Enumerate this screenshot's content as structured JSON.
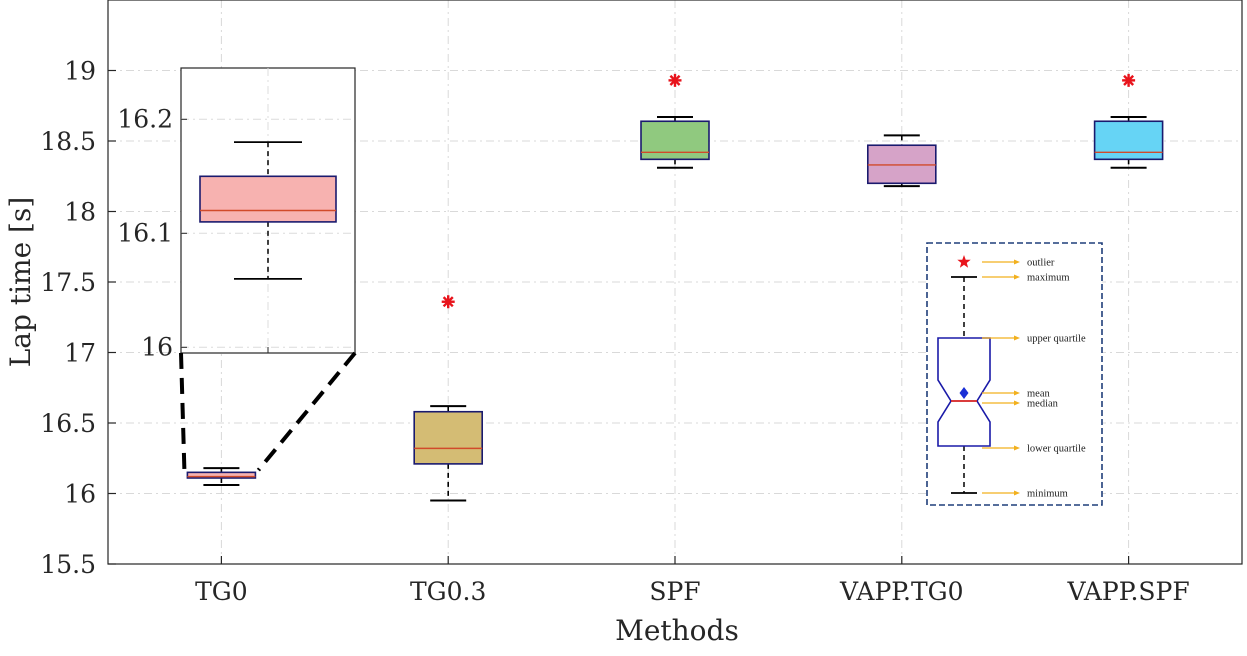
{
  "chart_data": {
    "type": "box",
    "xlabel": "Methods",
    "ylabel": "Lap time [s]",
    "ylim": [
      15.5,
      19.5
    ],
    "yticks": [
      "15.5",
      "16",
      "16.5",
      "17",
      "17.5",
      "18",
      "18.5",
      "19"
    ],
    "grid": true,
    "categories": [
      "TG0",
      "TG0.3",
      "SPF",
      "VAPP.TG0",
      "VAPP.SPF"
    ],
    "boxes": [
      {
        "category": "TG0",
        "min": 16.06,
        "q1": 16.11,
        "median": 16.12,
        "q3": 16.15,
        "max": 16.18,
        "outliers": [],
        "color": "#f7b2b0"
      },
      {
        "category": "TG0.3",
        "min": 15.95,
        "q1": 16.21,
        "median": 16.32,
        "q3": 16.58,
        "max": 16.62,
        "outliers": [
          17.36
        ],
        "color": "#d4bc74"
      },
      {
        "category": "SPF",
        "min": 18.31,
        "q1": 18.37,
        "median": 18.42,
        "q3": 18.64,
        "max": 18.67,
        "outliers": [
          18.93
        ],
        "color": "#90c97f"
      },
      {
        "category": "VAPP.TG0",
        "min": 18.18,
        "q1": 18.2,
        "median": 18.33,
        "q3": 18.47,
        "max": 18.54,
        "outliers": [],
        "color": "#d6a3c8"
      },
      {
        "category": "VAPP.SPF",
        "min": 18.31,
        "q1": 18.37,
        "median": 18.42,
        "q3": 18.64,
        "max": 18.67,
        "outliers": [
          18.93
        ],
        "color": "#66d4f5"
      }
    ],
    "inset": {
      "category": "TG0",
      "ylim": [
        15.995,
        16.245
      ],
      "yticks": [
        "16",
        "16.1",
        "16.2"
      ],
      "box": {
        "min": 16.06,
        "q1": 16.11,
        "median": 16.12,
        "q3": 16.15,
        "max": 16.18
      }
    },
    "legend": {
      "placement": "bottom-right",
      "items": [
        "outlier",
        "maximum",
        "upper quartile",
        "mean",
        "median",
        "lower quartile",
        "minimum"
      ]
    },
    "colors": {
      "whisker": "#000000",
      "box_edge": "#1a1a6e",
      "median": "#d14a2a",
      "outlier": "#e8141c",
      "legend_box": "#1f3e7a",
      "legend_arrow": "#f2b01e",
      "legend_mean": "#1a2fd6"
    }
  }
}
